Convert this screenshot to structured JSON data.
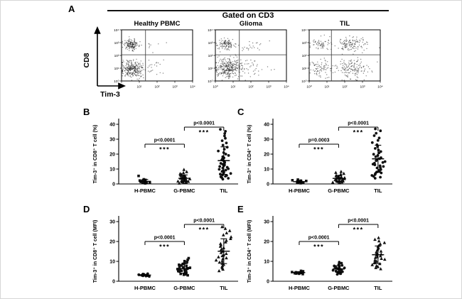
{
  "colors": {
    "ink": "#000000",
    "point": "#111111",
    "gate_line": "#333333"
  },
  "chart_data": [
    {
      "type": "scatter",
      "kind": "flow-cytometry-dot-plot",
      "panel": "A",
      "title": "Gated on CD3",
      "xlabel": "Tim-3",
      "ylabel": "CD8",
      "scale": "log10",
      "axis_range": [
        0,
        4
      ],
      "log_tick_labels": [
        "10⁰",
        "10¹",
        "10²",
        "10³",
        "10⁴"
      ],
      "subplots": [
        {
          "title": "Healthy PBMC",
          "quadrant_gate": {
            "x": 1.35,
            "y": 2.05
          },
          "clusters": [
            {
              "cx": 0.55,
              "cy": 2.85,
              "sx": 0.22,
              "sy": 0.2,
              "n": 150
            },
            {
              "cx": 0.6,
              "cy": 0.95,
              "sx": 0.3,
              "sy": 0.33,
              "n": 270
            },
            {
              "cx": 1.7,
              "cy": 0.95,
              "sx": 0.45,
              "sy": 0.35,
              "n": 28
            },
            {
              "cx": 1.7,
              "cy": 2.8,
              "sx": 0.35,
              "sy": 0.25,
              "n": 8
            }
          ]
        },
        {
          "title": "Glioma",
          "quadrant_gate": {
            "x": 1.35,
            "y": 2.05
          },
          "clusters": [
            {
              "cx": 0.6,
              "cy": 2.85,
              "sx": 0.25,
              "sy": 0.22,
              "n": 110
            },
            {
              "cx": 0.7,
              "cy": 1.0,
              "sx": 0.35,
              "sy": 0.38,
              "n": 290
            },
            {
              "cx": 1.9,
              "cy": 1.0,
              "sx": 0.55,
              "sy": 0.38,
              "n": 55
            },
            {
              "cx": 1.9,
              "cy": 2.8,
              "sx": 0.45,
              "sy": 0.28,
              "n": 22
            }
          ]
        },
        {
          "title": "TIL",
          "quadrant_gate": {
            "x": 1.25,
            "y": 2.05
          },
          "clusters": [
            {
              "cx": 0.6,
              "cy": 2.9,
              "sx": 0.25,
              "sy": 0.28,
              "n": 55
            },
            {
              "cx": 2.35,
              "cy": 2.9,
              "sx": 0.5,
              "sy": 0.3,
              "n": 130
            },
            {
              "cx": 0.6,
              "cy": 1.0,
              "sx": 0.3,
              "sy": 0.38,
              "n": 75
            },
            {
              "cx": 2.35,
              "cy": 1.0,
              "sx": 0.5,
              "sy": 0.38,
              "n": 150
            }
          ]
        }
      ]
    },
    {
      "type": "scatter",
      "panel": "B",
      "ylabel": "Tim-3⁺ in CD8⁺ T cell (%)",
      "ylim": [
        0,
        40
      ],
      "yticks": [
        0,
        10,
        20,
        30,
        40
      ],
      "categories": [
        "H-PBMC",
        "G-PBMC",
        "TIL"
      ],
      "markers": [
        "square",
        "triangle",
        "circle"
      ],
      "series": [
        {
          "name": "H-PBMC",
          "values": [
            0.4,
            0.6,
            0.8,
            0.9,
            1.0,
            1.1,
            1.3,
            1.4,
            1.6,
            1.8,
            2.0,
            2.3,
            2.7,
            3.1,
            5.4
          ]
        },
        {
          "name": "G-PBMC",
          "values": [
            0.5,
            0.8,
            1.0,
            1.2,
            1.4,
            1.6,
            1.8,
            2.0,
            2.1,
            2.3,
            2.5,
            2.6,
            2.8,
            3.0,
            3.2,
            3.4,
            3.6,
            3.8,
            4.0,
            4.2,
            4.5,
            4.7,
            5.0,
            5.3,
            5.6,
            6.0,
            6.4,
            6.9,
            7.5,
            8.2,
            9.6
          ]
        },
        {
          "name": "TIL",
          "values": [
            3.2,
            3.8,
            4.3,
            4.8,
            5.2,
            5.7,
            6.1,
            6.6,
            7.0,
            7.5,
            8.0,
            8.4,
            8.9,
            9.3,
            9.8,
            10.2,
            10.7,
            11.2,
            11.7,
            12.2,
            12.7,
            13.2,
            13.8,
            14.3,
            14.9,
            15.5,
            16.1,
            16.8,
            17.5,
            18.3,
            19.1,
            20.0,
            21.0,
            22.1,
            23.3,
            24.6,
            26.0,
            27.5,
            29.0,
            30.6,
            32.2,
            33.8,
            35.3,
            36.6
          ]
        }
      ],
      "comparisons": [
        {
          "from": "H-PBMC",
          "to": "G-PBMC",
          "p": "p<0.0001",
          "stars": "***"
        },
        {
          "from": "G-PBMC",
          "to": "TIL",
          "p": "p<0.0001",
          "stars": "***"
        }
      ]
    },
    {
      "type": "scatter",
      "panel": "C",
      "ylabel": "Tim-3⁺ in CD4⁺ T cell (%)",
      "ylim": [
        0,
        40
      ],
      "yticks": [
        0,
        10,
        20,
        30,
        40
      ],
      "categories": [
        "H-PBMC",
        "G-PBMC",
        "TIL"
      ],
      "markers": [
        "square",
        "triangle",
        "circle"
      ],
      "series": [
        {
          "name": "H-PBMC",
          "values": [
            0.5,
            0.7,
            0.8,
            1.0,
            1.1,
            1.3,
            1.4,
            1.6,
            1.8,
            2.0,
            2.2,
            2.5,
            2.9
          ]
        },
        {
          "name": "G-PBMC",
          "values": [
            0.6,
            0.9,
            1.1,
            1.3,
            1.5,
            1.7,
            1.9,
            2.1,
            2.3,
            2.5,
            2.7,
            2.9,
            3.1,
            3.3,
            3.5,
            3.7,
            3.9,
            4.1,
            4.4,
            4.7,
            5.0,
            5.3,
            5.7,
            6.1,
            6.5,
            7.0,
            7.6,
            8.3
          ]
        },
        {
          "name": "TIL",
          "values": [
            3.8,
            4.5,
            5.1,
            5.7,
            6.3,
            6.9,
            7.4,
            8.0,
            8.5,
            9.1,
            9.6,
            10.1,
            10.7,
            11.2,
            11.7,
            12.2,
            12.8,
            13.3,
            13.9,
            14.4,
            15.0,
            15.6,
            16.2,
            16.9,
            17.6,
            18.3,
            19.1,
            19.9,
            20.8,
            21.7,
            22.7,
            23.8,
            25.0,
            26.3,
            27.7,
            29.2,
            30.8,
            32.4,
            34.0,
            35.6,
            36.9
          ]
        }
      ],
      "comparisons": [
        {
          "from": "H-PBMC",
          "to": "G-PBMC",
          "p": "p=0.0003",
          "stars": "***"
        },
        {
          "from": "G-PBMC",
          "to": "TIL",
          "p": "p<0.0001",
          "stars": "***"
        }
      ]
    },
    {
      "type": "scatter",
      "panel": "D",
      "ylabel": "Tim-3⁺ in CD8⁺ T cell (MFI)",
      "ylim": [
        0,
        30
      ],
      "yticks": [
        0,
        10,
        20,
        30
      ],
      "categories": [
        "H-PBMC",
        "G-PBMC",
        "TIL"
      ],
      "markers": [
        "circle",
        "square",
        "triangle"
      ],
      "series": [
        {
          "name": "H-PBMC",
          "values": [
            2.4,
            2.6,
            2.7,
            2.8,
            2.9,
            3.0,
            3.0,
            3.1,
            3.2,
            3.3,
            3.4,
            3.5,
            3.6,
            3.8
          ]
        },
        {
          "name": "G-PBMC",
          "values": [
            3.0,
            3.3,
            3.5,
            3.7,
            3.9,
            4.1,
            4.3,
            4.5,
            4.7,
            4.9,
            5.1,
            5.3,
            5.5,
            5.7,
            5.9,
            6.1,
            6.3,
            6.5,
            6.8,
            7.0,
            7.3,
            7.6,
            7.9,
            8.3,
            8.7,
            9.1,
            9.6,
            10.1,
            10.8,
            11.6
          ]
        },
        {
          "name": "TIL",
          "values": [
            5.2,
            6.0,
            6.6,
            7.2,
            7.8,
            8.4,
            9.0,
            9.5,
            10.1,
            10.6,
            11.2,
            11.7,
            12.2,
            12.8,
            13.3,
            13.9,
            14.4,
            15.0,
            15.6,
            16.2,
            16.8,
            17.5,
            18.2,
            18.9,
            19.7,
            20.5,
            21.4,
            22.3,
            23.3,
            24.3,
            25.4,
            26.5,
            27.4
          ]
        }
      ],
      "comparisons": [
        {
          "from": "H-PBMC",
          "to": "G-PBMC",
          "p": "p<0.0001",
          "stars": "***"
        },
        {
          "from": "G-PBMC",
          "to": "TIL",
          "p": "p<0.0001",
          "stars": "***"
        }
      ]
    },
    {
      "type": "scatter",
      "panel": "E",
      "ylabel": "Tim-3⁺ in CD4⁺ T cell (MFI)",
      "ylim": [
        0,
        30
      ],
      "yticks": [
        0,
        10,
        20,
        30
      ],
      "categories": [
        "H-PBMC",
        "G-PBMC",
        "TIL"
      ],
      "markers": [
        "square",
        "circle",
        "triangle"
      ],
      "series": [
        {
          "name": "H-PBMC",
          "values": [
            3.6,
            3.8,
            3.9,
            4.0,
            4.1,
            4.2,
            4.3,
            4.4,
            4.5,
            4.6,
            4.8,
            5.0,
            5.2
          ]
        },
        {
          "name": "G-PBMC",
          "values": [
            3.5,
            3.8,
            4.0,
            4.2,
            4.4,
            4.6,
            4.8,
            5.0,
            5.1,
            5.3,
            5.5,
            5.7,
            5.9,
            6.1,
            6.3,
            6.5,
            6.7,
            6.9,
            7.1,
            7.4,
            7.7,
            8.0,
            8.3,
            8.7,
            9.1,
            9.6
          ]
        },
        {
          "name": "TIL",
          "values": [
            6.2,
            6.8,
            7.3,
            7.8,
            8.3,
            8.8,
            9.2,
            9.7,
            10.1,
            10.6,
            11.0,
            11.4,
            11.9,
            12.3,
            12.7,
            13.2,
            13.6,
            14.1,
            14.6,
            15.1,
            15.6,
            16.2,
            16.8,
            17.4,
            18.0,
            18.7,
            19.4,
            20.2,
            21.0,
            21.9
          ]
        }
      ],
      "comparisons": [
        {
          "from": "H-PBMC",
          "to": "G-PBMC",
          "p": "p<0.0001",
          "stars": "***"
        },
        {
          "from": "G-PBMC",
          "to": "TIL",
          "p": "p<0.0001",
          "stars": "***"
        }
      ]
    }
  ]
}
